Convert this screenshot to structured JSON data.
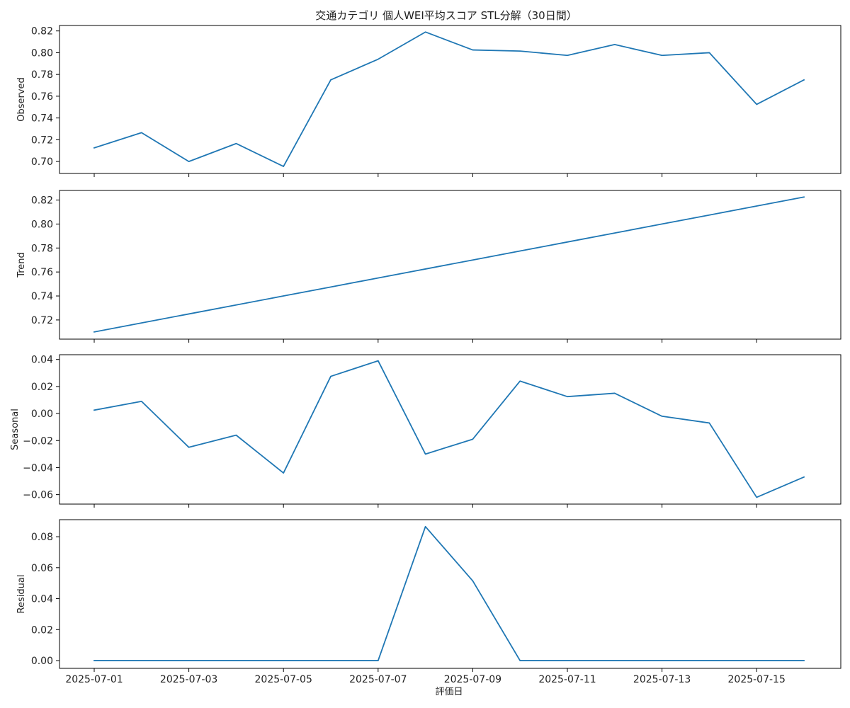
{
  "chart_data": {
    "type": "line",
    "title": "交通カテゴリ 個人WEI平均スコア STL分解（30日間）",
    "xlabel": "評価日",
    "x": [
      "2025-07-01",
      "2025-07-02",
      "2025-07-03",
      "2025-07-04",
      "2025-07-05",
      "2025-07-06",
      "2025-07-07",
      "2025-07-08",
      "2025-07-09",
      "2025-07-10",
      "2025-07-11",
      "2025-07-12",
      "2025-07-13",
      "2025-07-14",
      "2025-07-15",
      "2025-07-16"
    ],
    "xtick_labels": [
      "2025-07-01",
      "2025-07-03",
      "2025-07-05",
      "2025-07-07",
      "2025-07-09",
      "2025-07-11",
      "2025-07-13",
      "2025-07-15"
    ],
    "line_color": "#1f77b4",
    "grid": false,
    "panels": [
      {
        "ylabel": "Observed",
        "ylim": [
          0.689,
          0.825
        ],
        "yticks": [
          0.7,
          0.72,
          0.74,
          0.76,
          0.78,
          0.8,
          0.82
        ],
        "ytick_labels": [
          "0.70",
          "0.72",
          "0.74",
          "0.76",
          "0.78",
          "0.80",
          "0.82"
        ],
        "values": [
          0.7125,
          0.7265,
          0.7,
          0.7165,
          0.6955,
          0.775,
          0.794,
          0.819,
          0.8025,
          0.8015,
          0.7975,
          0.8075,
          0.7975,
          0.8,
          0.7525,
          0.775
        ]
      },
      {
        "ylabel": "Trend",
        "ylim": [
          0.704,
          0.828
        ],
        "yticks": [
          0.72,
          0.74,
          0.76,
          0.78,
          0.8,
          0.82
        ],
        "ytick_labels": [
          "0.72",
          "0.74",
          "0.76",
          "0.78",
          "0.80",
          "0.82"
        ],
        "values": [
          0.71,
          0.7175,
          0.725,
          0.7325,
          0.74,
          0.7475,
          0.755,
          0.7625,
          0.77,
          0.7775,
          0.785,
          0.7925,
          0.8,
          0.8075,
          0.815,
          0.8225
        ]
      },
      {
        "ylabel": "Seasonal",
        "ylim": [
          -0.067,
          0.0435
        ],
        "yticks": [
          -0.06,
          -0.04,
          -0.02,
          0.0,
          0.02,
          0.04
        ],
        "ytick_labels": [
          "−0.06",
          "−0.04",
          "−0.02",
          "0.00",
          "0.02",
          "0.04"
        ],
        "values": [
          0.0025,
          0.009,
          -0.025,
          -0.016,
          -0.044,
          0.0275,
          0.039,
          -0.03,
          -0.019,
          0.024,
          0.0125,
          0.015,
          -0.002,
          -0.007,
          -0.062,
          -0.047
        ]
      },
      {
        "ylabel": "Residual",
        "ylim": [
          -0.005,
          0.091
        ],
        "yticks": [
          0.0,
          0.02,
          0.04,
          0.06,
          0.08
        ],
        "ytick_labels": [
          "0.00",
          "0.02",
          "0.04",
          "0.06",
          "0.08"
        ],
        "values": [
          0,
          0,
          0,
          0,
          0,
          0,
          0,
          0.0865,
          0.0515,
          0,
          0,
          0,
          0,
          0,
          0,
          0
        ]
      }
    ]
  }
}
